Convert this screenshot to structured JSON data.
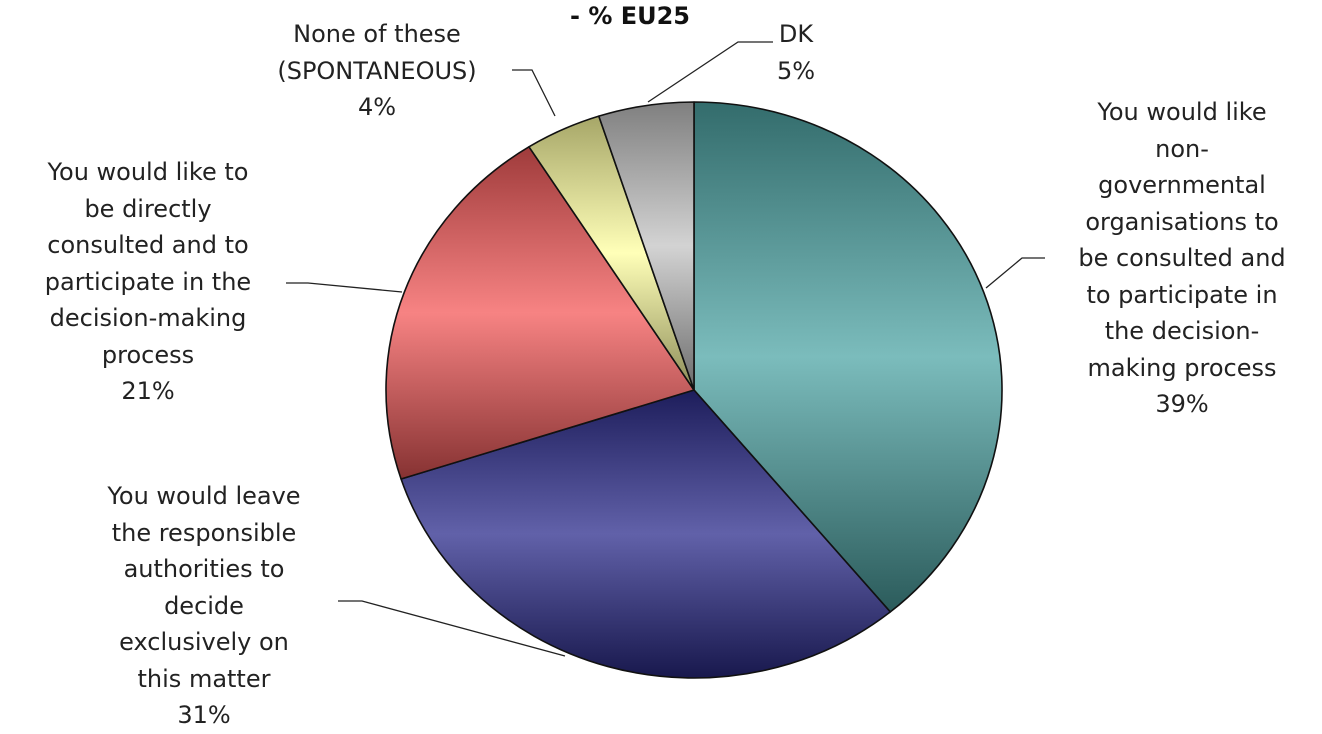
{
  "chart_data": {
    "type": "pie",
    "title": "- % EU25",
    "slices": [
      {
        "label": "You would like non-governmental organisations to be consulted and to participate in the decision-making process",
        "label_lines": [
          "You would like",
          "non-",
          "governmental",
          "organisations to",
          "be consulted and",
          "to participate in",
          "the decision-",
          "making process"
        ],
        "value": 39,
        "value_label": "39%",
        "color": "#4fa6a6"
      },
      {
        "label": "You would leave the responsible authorities to decide exclusively on this matter",
        "label_lines": [
          "You would leave",
          "the responsible",
          "authorities to",
          "decide",
          "exclusively on",
          "this matter"
        ],
        "value": 31,
        "value_label": "31%",
        "color": "#2c2c8c"
      },
      {
        "label": "You would like to be directly consulted and to participate in the decision-making process",
        "label_lines": [
          "You would like to",
          "be directly",
          "consulted and to",
          "participate in the",
          "decision-making",
          "process"
        ],
        "value": 21,
        "value_label": "21%",
        "color": "#f45a5a"
      },
      {
        "label": "None of these (SPONTANEOUS)",
        "label_lines": [
          "None of these",
          "(SPONTANEOUS)"
        ],
        "value": 4,
        "value_label": "4%",
        "color": "#ffffa0"
      },
      {
        "label": "DK",
        "label_lines": [
          "DK"
        ],
        "value": 5,
        "value_label": "5%",
        "color": "#c4c4c4"
      }
    ]
  }
}
